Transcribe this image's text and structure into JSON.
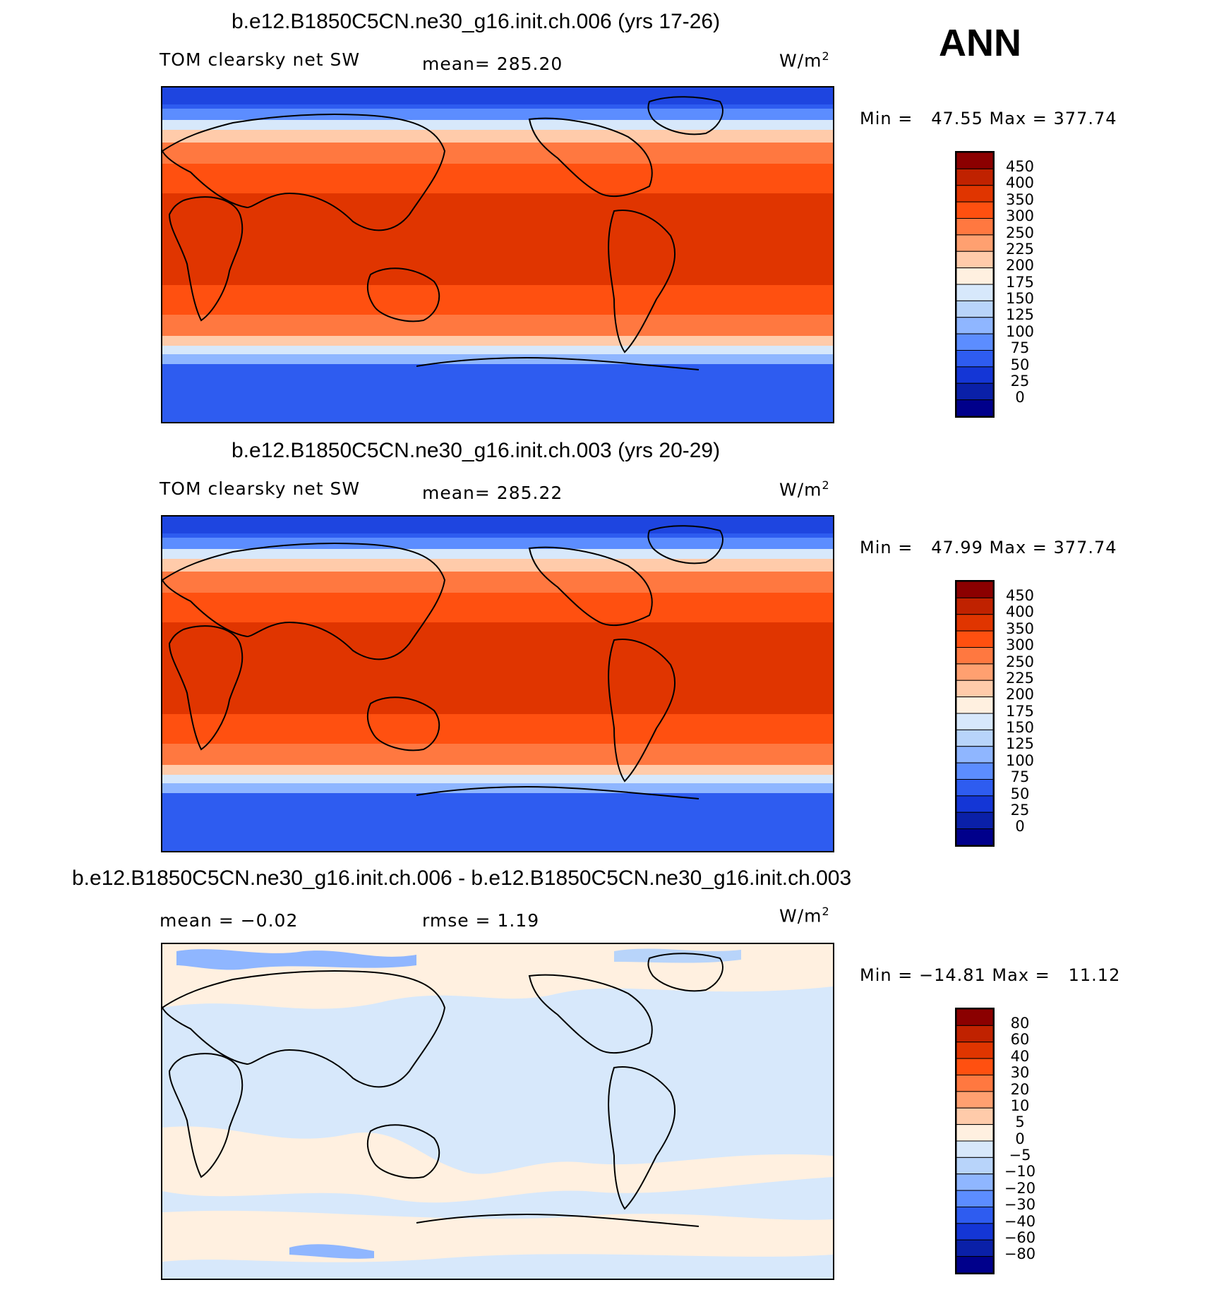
{
  "season": "ANN",
  "panels": [
    {
      "title": "b.e12.B1850C5CN.ne30_g16.init.ch.006 (yrs 17-26)",
      "variable": "TOM clearsky net SW",
      "stat_line": "mean= 285.20",
      "units": "W/m",
      "units_sup": "2",
      "minmax": "Min =   47.55 Max = 377.74",
      "colorbar_labels": [
        "450",
        "400",
        "350",
        "300",
        "250",
        "225",
        "200",
        "175",
        "150",
        "125",
        "100",
        "75",
        "50",
        "25",
        "0"
      ],
      "colors": [
        "#8b0000",
        "#c02200",
        "#e03500",
        "#ff5010",
        "#ff7840",
        "#ffa070",
        "#ffcbaa",
        "#fff0e0",
        "#d7e8fb",
        "#b8d4fa",
        "#8fb6ff",
        "#5c8dff",
        "#2e5cf0",
        "#1436d6",
        "#0a20a8",
        "#00008b"
      ]
    },
    {
      "title": "b.e12.B1850C5CN.ne30_g16.init.ch.003 (yrs 20-29)",
      "variable": "TOM clearsky net SW",
      "stat_line": "mean= 285.22",
      "units": "W/m",
      "units_sup": "2",
      "minmax": "Min =   47.99 Max = 377.74",
      "colorbar_labels": [
        "450",
        "400",
        "350",
        "300",
        "250",
        "225",
        "200",
        "175",
        "150",
        "125",
        "100",
        "75",
        "50",
        "25",
        "0"
      ],
      "colors": [
        "#8b0000",
        "#c02200",
        "#e03500",
        "#ff5010",
        "#ff7840",
        "#ffa070",
        "#ffcbaa",
        "#fff0e0",
        "#d7e8fb",
        "#b8d4fa",
        "#8fb6ff",
        "#5c8dff",
        "#2e5cf0",
        "#1436d6",
        "#0a20a8",
        "#00008b"
      ]
    },
    {
      "title": "b.e12.B1850C5CN.ne30_g16.init.ch.006 - b.e12.B1850C5CN.ne30_g16.init.ch.003",
      "mean_label": "mean =   −0.02",
      "rmse_label": "rmse =    1.19",
      "units": "W/m",
      "units_sup": "2",
      "minmax": "Min = −14.81 Max =   11.12",
      "colorbar_labels": [
        "80",
        "60",
        "40",
        "30",
        "20",
        "10",
        "5",
        "0",
        "−5",
        "−10",
        "−20",
        "−30",
        "−40",
        "−60",
        "−80"
      ],
      "colors": [
        "#8b0000",
        "#c02200",
        "#e03500",
        "#ff5010",
        "#ff7840",
        "#ffa070",
        "#ffcbaa",
        "#fff0e0",
        "#d7e8fb",
        "#b8d4fa",
        "#8fb6ff",
        "#5c8dff",
        "#2e5cf0",
        "#1436d6",
        "#0a20a8",
        "#00008b"
      ]
    }
  ]
}
